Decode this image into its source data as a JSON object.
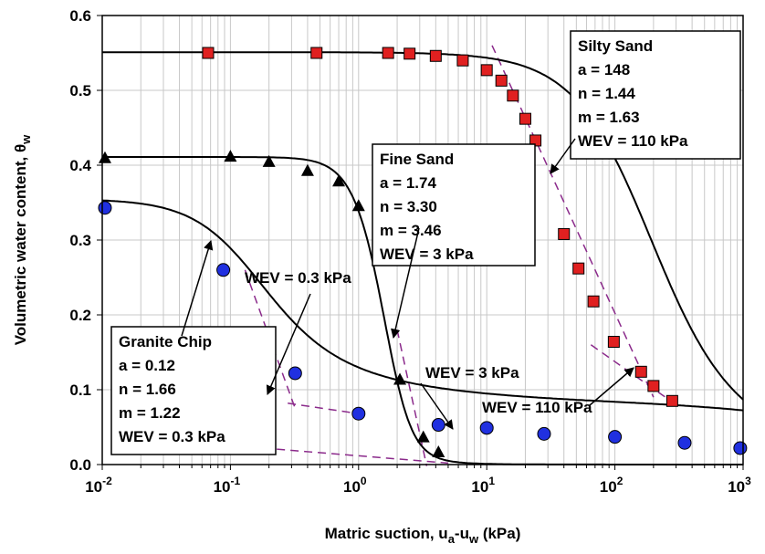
{
  "chart_data": {
    "type": "scatter",
    "xscale": "log",
    "xlim": [
      0.01,
      1000
    ],
    "ylim": [
      0,
      0.6
    ],
    "grid": true,
    "xlabel": "Matric suction, u",
    "xlabel_sub_a": "a",
    "xlabel_mid": "-u",
    "xlabel_sub_w": "w",
    "xlabel_unit": " (kPa)",
    "ylabel": "Volumetric water content, θ",
    "ylabel_sub": "w",
    "yticks": [
      "0.0",
      "0.1",
      "0.2",
      "0.3",
      "0.4",
      "0.5",
      "0.6"
    ],
    "yticks_values": [
      0,
      0.1,
      0.2,
      0.3,
      0.4,
      0.5,
      0.6
    ],
    "xticks": [
      {
        "base": "10",
        "exp": "-2",
        "value": 0.01
      },
      {
        "base": "10",
        "exp": "-1",
        "value": 0.1
      },
      {
        "base": "10",
        "exp": "0",
        "value": 1
      },
      {
        "base": "10",
        "exp": "1",
        "value": 10
      },
      {
        "base": "10",
        "exp": "2",
        "value": 100
      },
      {
        "base": "10",
        "exp": "3",
        "value": 1000
      }
    ],
    "series": [
      {
        "marker": "square",
        "color": "#e02020",
        "points": [
          [
            0.067,
            0.55
          ],
          [
            0.47,
            0.55
          ],
          [
            1.7,
            0.55
          ],
          [
            2.5,
            0.549
          ],
          [
            4.0,
            0.546
          ],
          [
            6.5,
            0.54
          ],
          [
            10,
            0.527
          ],
          [
            13,
            0.513
          ],
          [
            16,
            0.493
          ],
          [
            20,
            0.462
          ],
          [
            24,
            0.433
          ],
          [
            40,
            0.308
          ],
          [
            52,
            0.262
          ],
          [
            68,
            0.218
          ],
          [
            98,
            0.164
          ],
          [
            160,
            0.124
          ],
          [
            200,
            0.105
          ],
          [
            280,
            0.085
          ]
        ],
        "params": {
          "a": 148,
          "n": 1.44,
          "m": 1.63
        },
        "residual": 0
      },
      {
        "marker": "triangle",
        "color": "#000000",
        "points": [
          [
            0.0105,
            0.41
          ],
          [
            0.1,
            0.412
          ],
          [
            0.2,
            0.405
          ],
          [
            0.4,
            0.393
          ],
          [
            0.7,
            0.379
          ],
          [
            1.0,
            0.346
          ],
          [
            2.1,
            0.114
          ],
          [
            3.2,
            0.037
          ],
          [
            4.2,
            0.017
          ]
        ],
        "params": {
          "a": 1.74,
          "n": 3.3,
          "m": 3.46
        },
        "residual": 0
      },
      {
        "marker": "circle",
        "color": "#2030e0",
        "points": [
          [
            0.0105,
            0.343
          ],
          [
            0.088,
            0.26
          ],
          [
            0.32,
            0.122
          ],
          [
            1.0,
            0.068
          ],
          [
            4.2,
            0.053
          ],
          [
            10,
            0.049
          ],
          [
            28,
            0.041
          ],
          [
            100,
            0.037
          ],
          [
            350,
            0.029
          ],
          [
            950,
            0.022
          ]
        ],
        "params": {
          "a": 0.12,
          "n": 1.66,
          "m": 1.22
        },
        "residual": 0.07
      }
    ],
    "tangents": [
      {
        "points": [
          [
            0.13,
            0.26
          ],
          [
            0.32,
            0.075
          ]
        ]
      },
      {
        "points": [
          [
            0.28,
            0.082
          ],
          [
            1.0,
            0.068
          ]
        ]
      },
      {
        "points": [
          [
            2.0,
            0.18
          ],
          [
            3.4,
            -0.002
          ]
        ]
      },
      {
        "points": [
          [
            0.18,
            0.022
          ],
          [
            5.0,
            0.002
          ]
        ]
      },
      {
        "points": [
          [
            11,
            0.56
          ],
          [
            200,
            0.09
          ]
        ]
      },
      {
        "points": [
          [
            65,
            0.16
          ],
          [
            300,
            0.08
          ]
        ]
      }
    ],
    "boxes": [
      {
        "lines": [
          "Silty Sand",
          "a = 148",
          "n = 1.44",
          "m = 1.63",
          "WEV = 110 kPa"
        ]
      },
      {
        "lines": [
          "Fine Sand",
          "a = 1.74",
          "n =  3.30",
          "m = 3.46",
          "WEV = 3 kPa"
        ]
      },
      {
        "lines": [
          "Granite Chip",
          "a = 0.12",
          "n =  1.66",
          "m = 1.22",
          "WEV = 0.3 kPa"
        ]
      }
    ],
    "labels": [
      {
        "text": "WEV = 0.3 kPa"
      },
      {
        "text": "WEV = 3 kPa"
      },
      {
        "text": "WEV = 110 kPa"
      }
    ],
    "colors": {
      "tangent": "#8b2a8b",
      "grid": "#c8c8c8"
    }
  }
}
